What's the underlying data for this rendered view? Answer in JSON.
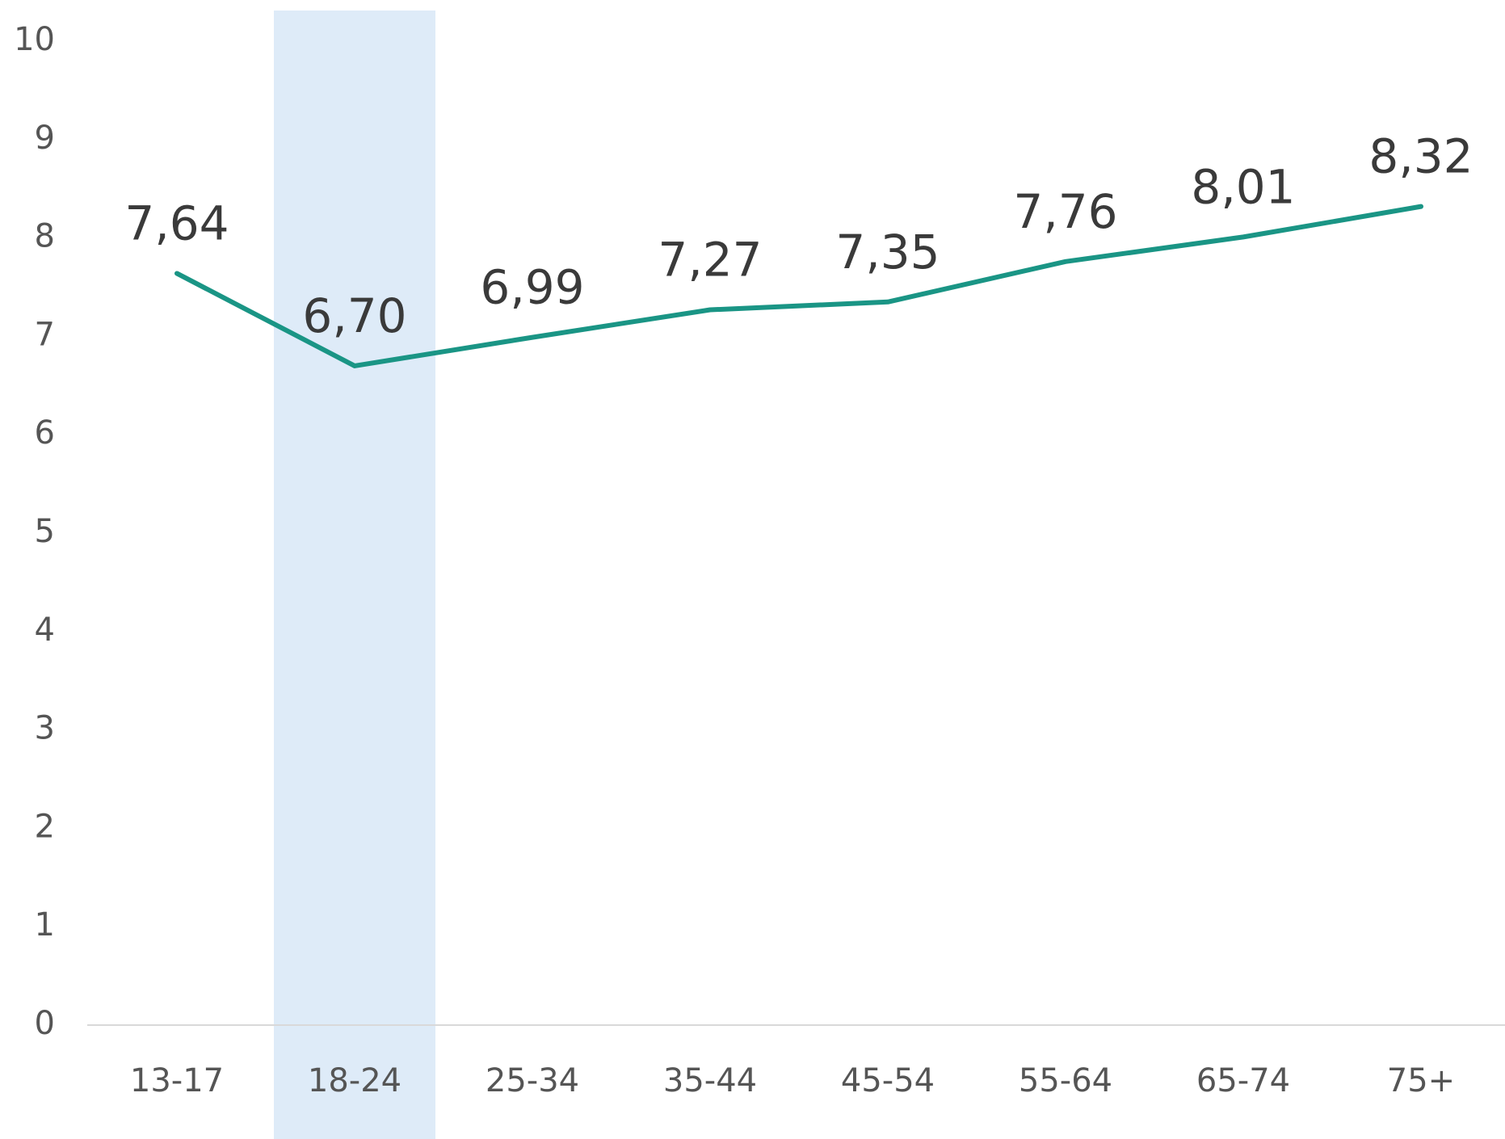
{
  "chart_data": {
    "type": "line",
    "categories": [
      "13-17",
      "18-24",
      "25-34",
      "35-44",
      "45-54",
      "55-64",
      "65-74",
      "75+"
    ],
    "series": [
      {
        "name": null,
        "color": "#1a9585",
        "values": [
          7.64,
          6.7,
          6.99,
          7.27,
          7.35,
          7.76,
          8.01,
          8.32
        ],
        "value_labels": [
          "7,64",
          "6,70",
          "6,99",
          "7,27",
          "7,35",
          "7,76",
          "8,01",
          "8,32"
        ]
      }
    ],
    "ylim": [
      0,
      10
    ],
    "yticks": [
      0,
      1,
      2,
      3,
      4,
      5,
      6,
      7,
      8,
      9,
      10
    ],
    "highlight": "18-24",
    "highlight_color": "#deebf8",
    "grid": false
  }
}
